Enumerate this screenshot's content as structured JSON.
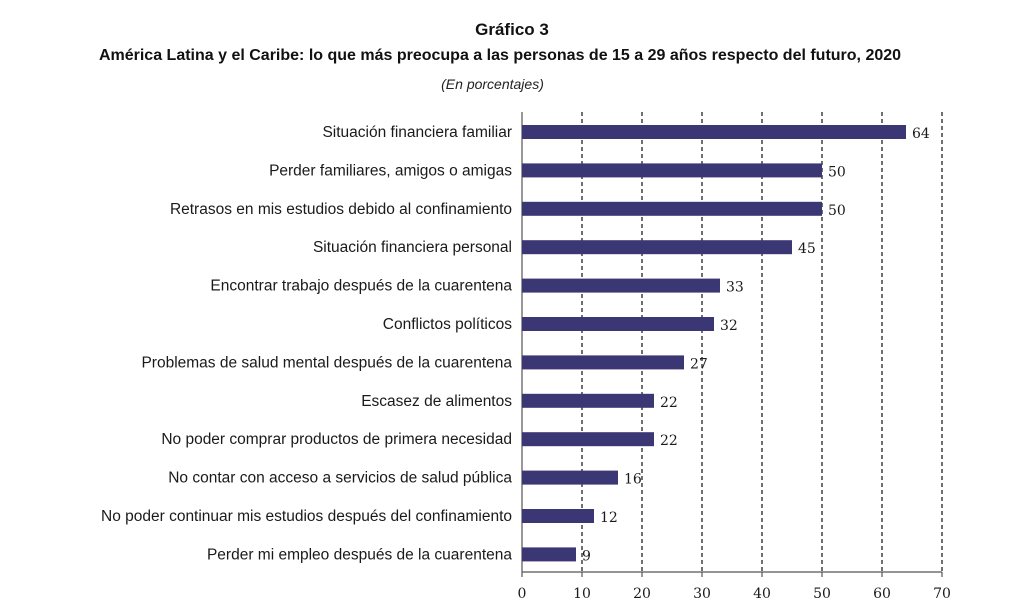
{
  "header": {
    "number": "Gráfico 3",
    "title": "América Latina y el Caribe: lo que más preocupa a las personas de 15 a 29 años respecto del futuro, 2020",
    "subtitle": "(En porcentajes)"
  },
  "colors": {
    "bar": "#3b3774",
    "grid": "#222222",
    "axis": "#555555"
  },
  "chart_data": {
    "type": "bar",
    "orientation": "horizontal",
    "title": "América Latina y el Caribe: lo que más preocupa a las personas de 15 a 29 años respecto del futuro, 2020",
    "subtitle": "(En porcentajes)",
    "categories": [
      "Situación financiera familiar",
      "Perder familiares, amigos o amigas",
      "Retrasos en mis estudios debido al confinamiento",
      "Situación financiera personal",
      "Encontrar trabajo después de la cuarentena",
      "Conflictos políticos",
      "Problemas de salud mental después de la cuarentena",
      "Escasez de alimentos",
      "No poder comprar productos de primera necesidad",
      "No contar con acceso a servicios de salud pública",
      "No poder continuar mis estudios después del confinamiento",
      "Perder mi empleo después de la cuarentena"
    ],
    "values": [
      64,
      50,
      50,
      45,
      33,
      32,
      27,
      22,
      22,
      16,
      12,
      9
    ],
    "xlim": [
      0,
      70
    ],
    "xticks": [
      0,
      10,
      20,
      30,
      40,
      50,
      60,
      70
    ],
    "grid": "vertical dashed",
    "legend": "none"
  }
}
